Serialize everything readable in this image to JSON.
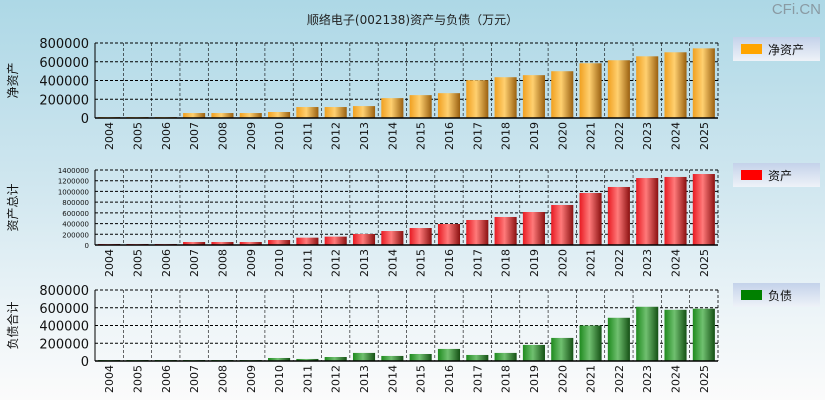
{
  "title": "顺络电子(002138)资产与负债（万元）",
  "logo": "CFi.CN",
  "chart_data": [
    {
      "type": "bar",
      "title": "顺络电子(002138)资产与负债（万元）",
      "ylabel": "净资产",
      "legend": "净资产",
      "legend_position": "right",
      "color": "#f5a623",
      "categories": [
        "2004",
        "2005",
        "2006",
        "2007",
        "2008",
        "2009",
        "2010",
        "2011",
        "2012",
        "2013",
        "2014",
        "2015",
        "2016",
        "2017",
        "2018",
        "2019",
        "2020",
        "2021",
        "2022",
        "2023",
        "2024",
        "2025"
      ],
      "values": [
        10000,
        10000,
        10000,
        53000,
        53000,
        53000,
        64000,
        117000,
        117000,
        127000,
        212000,
        244000,
        265000,
        403000,
        435000,
        457000,
        499000,
        584000,
        616000,
        658000,
        701000,
        743000
      ],
      "ylim": [
        0,
        800000
      ],
      "yticks": [
        "0",
        "200000",
        "400000",
        "600000",
        "800000"
      ],
      "grid": true
    },
    {
      "type": "bar",
      "ylabel": "资产总计",
      "legend": "资产",
      "legend_position": "right",
      "color": "#e8222a",
      "categories": [
        "2004",
        "2005",
        "2006",
        "2007",
        "2008",
        "2009",
        "2010",
        "2011",
        "2012",
        "2013",
        "2014",
        "2015",
        "2016",
        "2017",
        "2018",
        "2019",
        "2020",
        "2021",
        "2022",
        "2023",
        "2024",
        "2025"
      ],
      "values": [
        19000,
        19000,
        19000,
        56000,
        56000,
        56000,
        93000,
        137000,
        156000,
        205000,
        261000,
        317000,
        392000,
        467000,
        523000,
        616000,
        747000,
        971000,
        1083000,
        1250000,
        1270000,
        1325000
      ],
      "ylim": [
        0,
        1400000
      ],
      "yticks": [
        "0",
        "200000",
        "400000",
        "600000",
        "800000",
        "1000000",
        "1200000",
        "1400000"
      ],
      "grid": true
    },
    {
      "type": "bar",
      "ylabel": "负债合计",
      "legend": "负债",
      "legend_position": "right",
      "color": "#2e8b2e",
      "categories": [
        "2004",
        "2005",
        "2006",
        "2007",
        "2008",
        "2009",
        "2010",
        "2011",
        "2012",
        "2013",
        "2014",
        "2015",
        "2016",
        "2017",
        "2018",
        "2019",
        "2020",
        "2021",
        "2022",
        "2023",
        "2024",
        "2025"
      ],
      "values": [
        11000,
        11000,
        11000,
        11000,
        11000,
        11000,
        34000,
        23000,
        45000,
        91000,
        57000,
        79000,
        136000,
        68000,
        91000,
        181000,
        260000,
        400000,
        487000,
        611000,
        577000,
        589000
      ],
      "ylim": [
        0,
        800000
      ],
      "yticks": [
        "0",
        "200000",
        "400000",
        "600000",
        "800000"
      ],
      "grid": true
    }
  ]
}
